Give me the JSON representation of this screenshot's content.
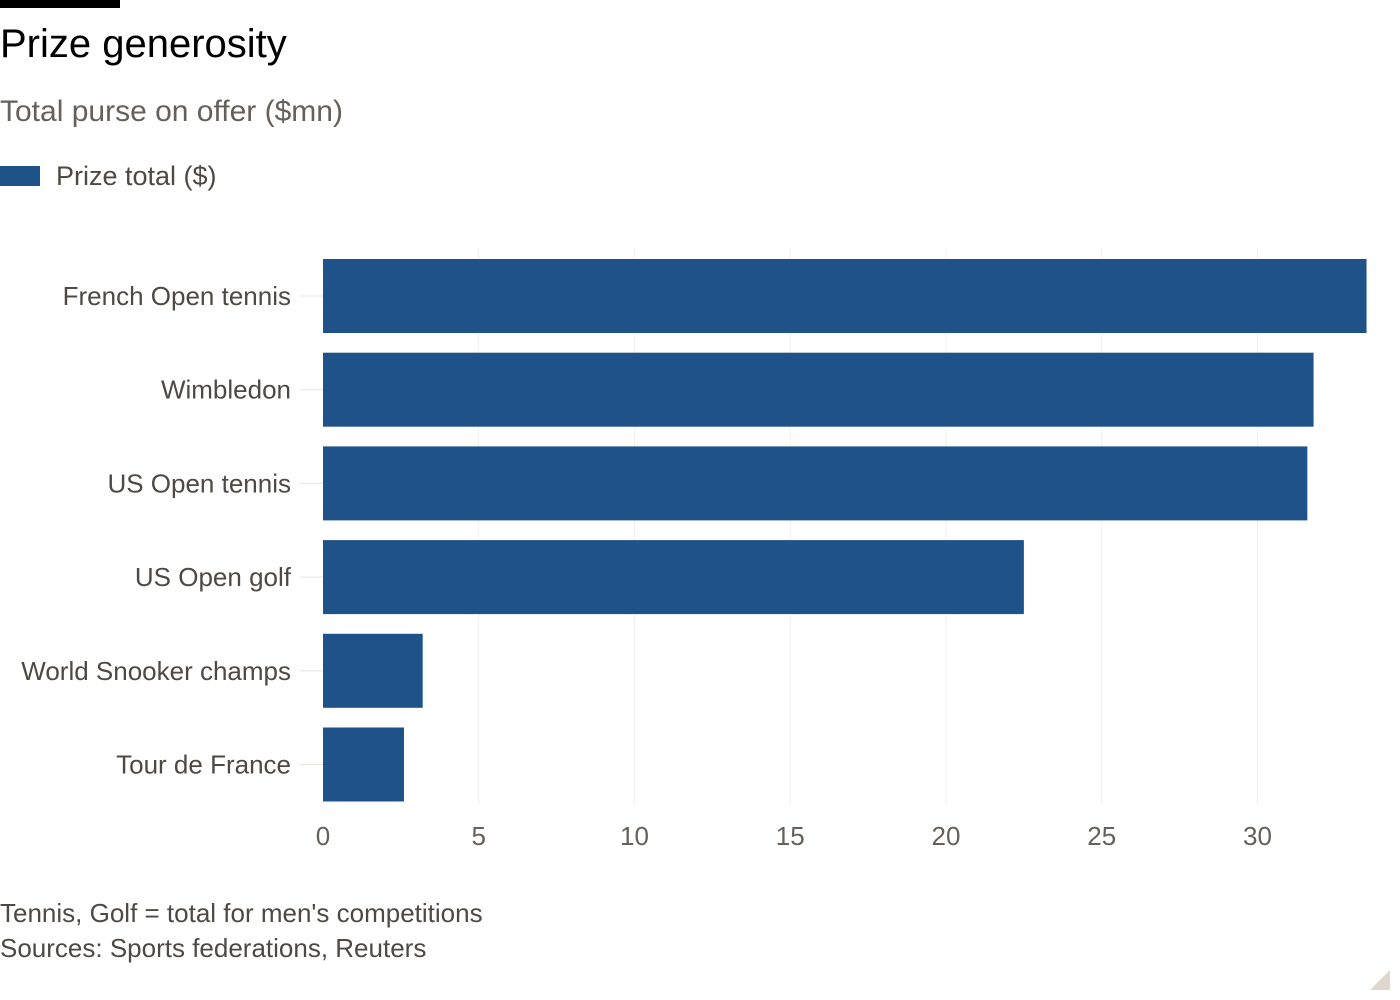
{
  "header": {
    "title": "Prize generosity",
    "subtitle": "Total purse on offer ($mn)"
  },
  "legend": {
    "label": "Prize total ($)",
    "color": "#1f5289"
  },
  "chart_data": {
    "type": "bar",
    "orientation": "horizontal",
    "categories": [
      "French Open tennis",
      "Wimbledon",
      "US Open tennis",
      "US Open golf",
      "World Snooker champs",
      "Tour de France"
    ],
    "series": [
      {
        "name": "Prize total ($)",
        "values": [
          33.5,
          31.8,
          31.6,
          22.5,
          3.2,
          2.6
        ],
        "color": "#1f5289"
      }
    ],
    "xticks": [
      0,
      5,
      10,
      15,
      20,
      25,
      30
    ],
    "xlim": [
      0,
      33.6
    ],
    "grid": true,
    "legend_position": "top-left"
  },
  "footer": {
    "note": "Tennis, Golf = total for men's competitions",
    "source": "Sources: Sports federations, Reuters"
  }
}
